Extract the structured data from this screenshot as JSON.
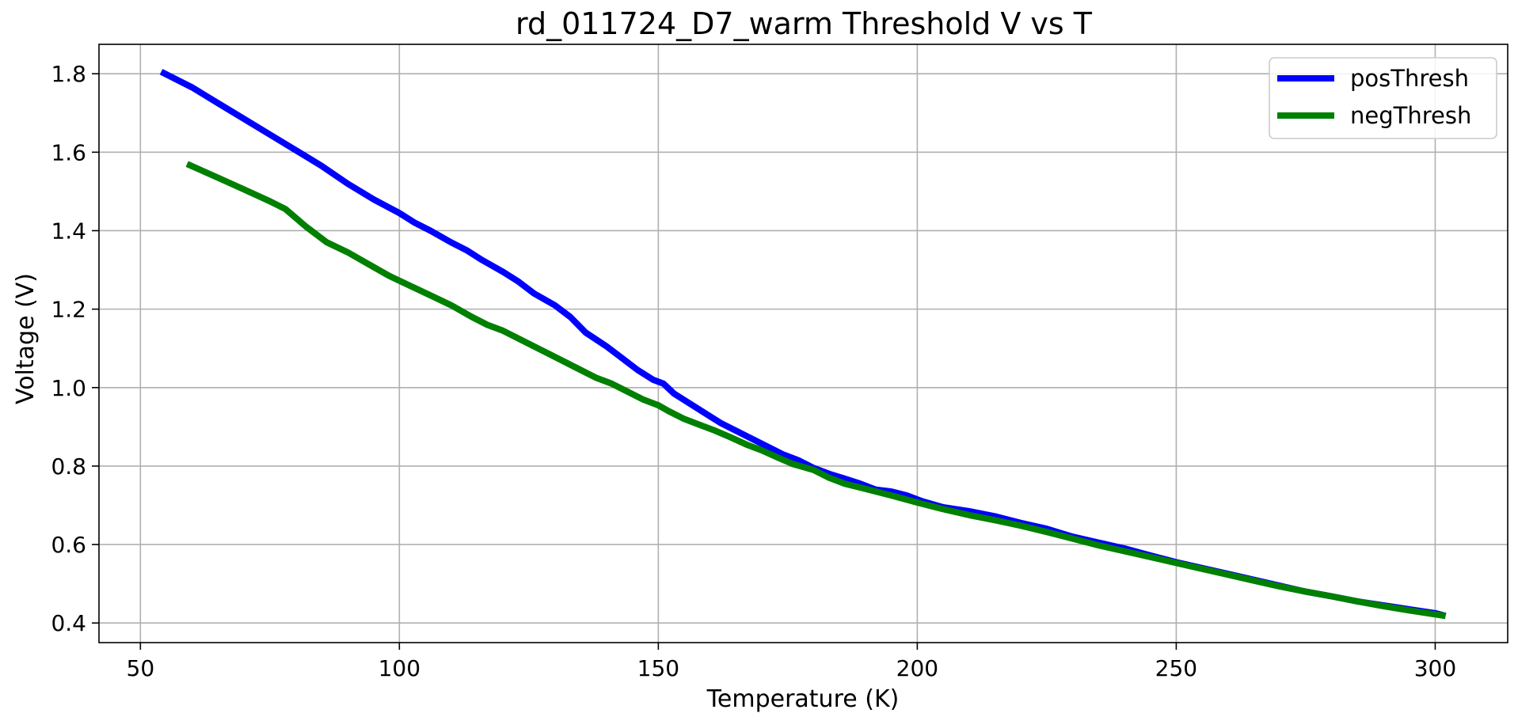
{
  "chart_data": {
    "type": "line",
    "title": "rd_011724_D7_warm Threshold V vs T",
    "xlabel": "Temperature (K)",
    "ylabel": "Voltage (V)",
    "xlim": [
      42,
      314
    ],
    "ylim": [
      0.35,
      1.875
    ],
    "xticks": [
      50,
      100,
      150,
      200,
      250,
      300
    ],
    "yticks": [
      0.4,
      0.6,
      0.8,
      1.0,
      1.2,
      1.4,
      1.6,
      1.8
    ],
    "xtick_labels": [
      "50",
      "100",
      "150",
      "200",
      "250",
      "300"
    ],
    "ytick_labels": [
      "0.4",
      "0.6",
      "0.8",
      "1.0",
      "1.2",
      "1.4",
      "1.6",
      "1.8"
    ],
    "grid": true,
    "legend_position": "top-right",
    "series": [
      {
        "name": "posThresh",
        "color": "#0000ff",
        "x": [
          54,
          60,
          65,
          70,
          75,
          80,
          85,
          90,
          95,
          100,
          103,
          106,
          110,
          113,
          116,
          120,
          123,
          126,
          130,
          133,
          136,
          140,
          143,
          146,
          149,
          151,
          153,
          156,
          159,
          162,
          165,
          168,
          171,
          174,
          177,
          180,
          183,
          186,
          189,
          192,
          195,
          198,
          201,
          205,
          210,
          215,
          220,
          225,
          230,
          235,
          240,
          245,
          250,
          255,
          260,
          265,
          270,
          275,
          280,
          285,
          290,
          295,
          300,
          302
        ],
        "y": [
          1.805,
          1.765,
          1.725,
          1.685,
          1.645,
          1.605,
          1.565,
          1.52,
          1.48,
          1.445,
          1.42,
          1.4,
          1.37,
          1.35,
          1.325,
          1.295,
          1.27,
          1.24,
          1.21,
          1.18,
          1.14,
          1.105,
          1.075,
          1.045,
          1.02,
          1.01,
          0.985,
          0.96,
          0.935,
          0.91,
          0.89,
          0.87,
          0.85,
          0.83,
          0.815,
          0.795,
          0.78,
          0.768,
          0.755,
          0.74,
          0.735,
          0.725,
          0.71,
          0.695,
          0.685,
          0.672,
          0.655,
          0.64,
          0.62,
          0.605,
          0.59,
          0.572,
          0.555,
          0.54,
          0.525,
          0.51,
          0.495,
          0.48,
          0.468,
          0.455,
          0.445,
          0.435,
          0.425,
          0.418
        ]
      },
      {
        "name": "negThresh",
        "color": "#008000",
        "x": [
          59,
          65,
          70,
          75,
          78,
          82,
          86,
          90,
          94,
          98,
          102,
          106,
          110,
          114,
          117,
          120,
          123,
          126,
          129,
          132,
          135,
          138,
          141,
          144,
          147,
          150,
          152,
          155,
          158,
          161,
          164,
          167,
          170,
          173,
          176,
          180,
          183,
          186,
          190,
          195,
          200,
          205,
          210,
          215,
          220,
          225,
          230,
          235,
          240,
          245,
          250,
          255,
          260,
          265,
          270,
          275,
          280,
          285,
          290,
          295,
          300,
          302
        ],
        "y": [
          1.57,
          1.535,
          1.505,
          1.475,
          1.455,
          1.41,
          1.37,
          1.345,
          1.315,
          1.285,
          1.26,
          1.235,
          1.21,
          1.18,
          1.16,
          1.145,
          1.125,
          1.105,
          1.085,
          1.065,
          1.045,
          1.025,
          1.01,
          0.99,
          0.97,
          0.955,
          0.94,
          0.92,
          0.905,
          0.89,
          0.873,
          0.855,
          0.84,
          0.822,
          0.805,
          0.79,
          0.77,
          0.755,
          0.742,
          0.725,
          0.707,
          0.69,
          0.675,
          0.662,
          0.648,
          0.632,
          0.615,
          0.598,
          0.583,
          0.568,
          0.553,
          0.538,
          0.523,
          0.508,
          0.493,
          0.48,
          0.468,
          0.455,
          0.443,
          0.432,
          0.422,
          0.418
        ]
      }
    ]
  }
}
